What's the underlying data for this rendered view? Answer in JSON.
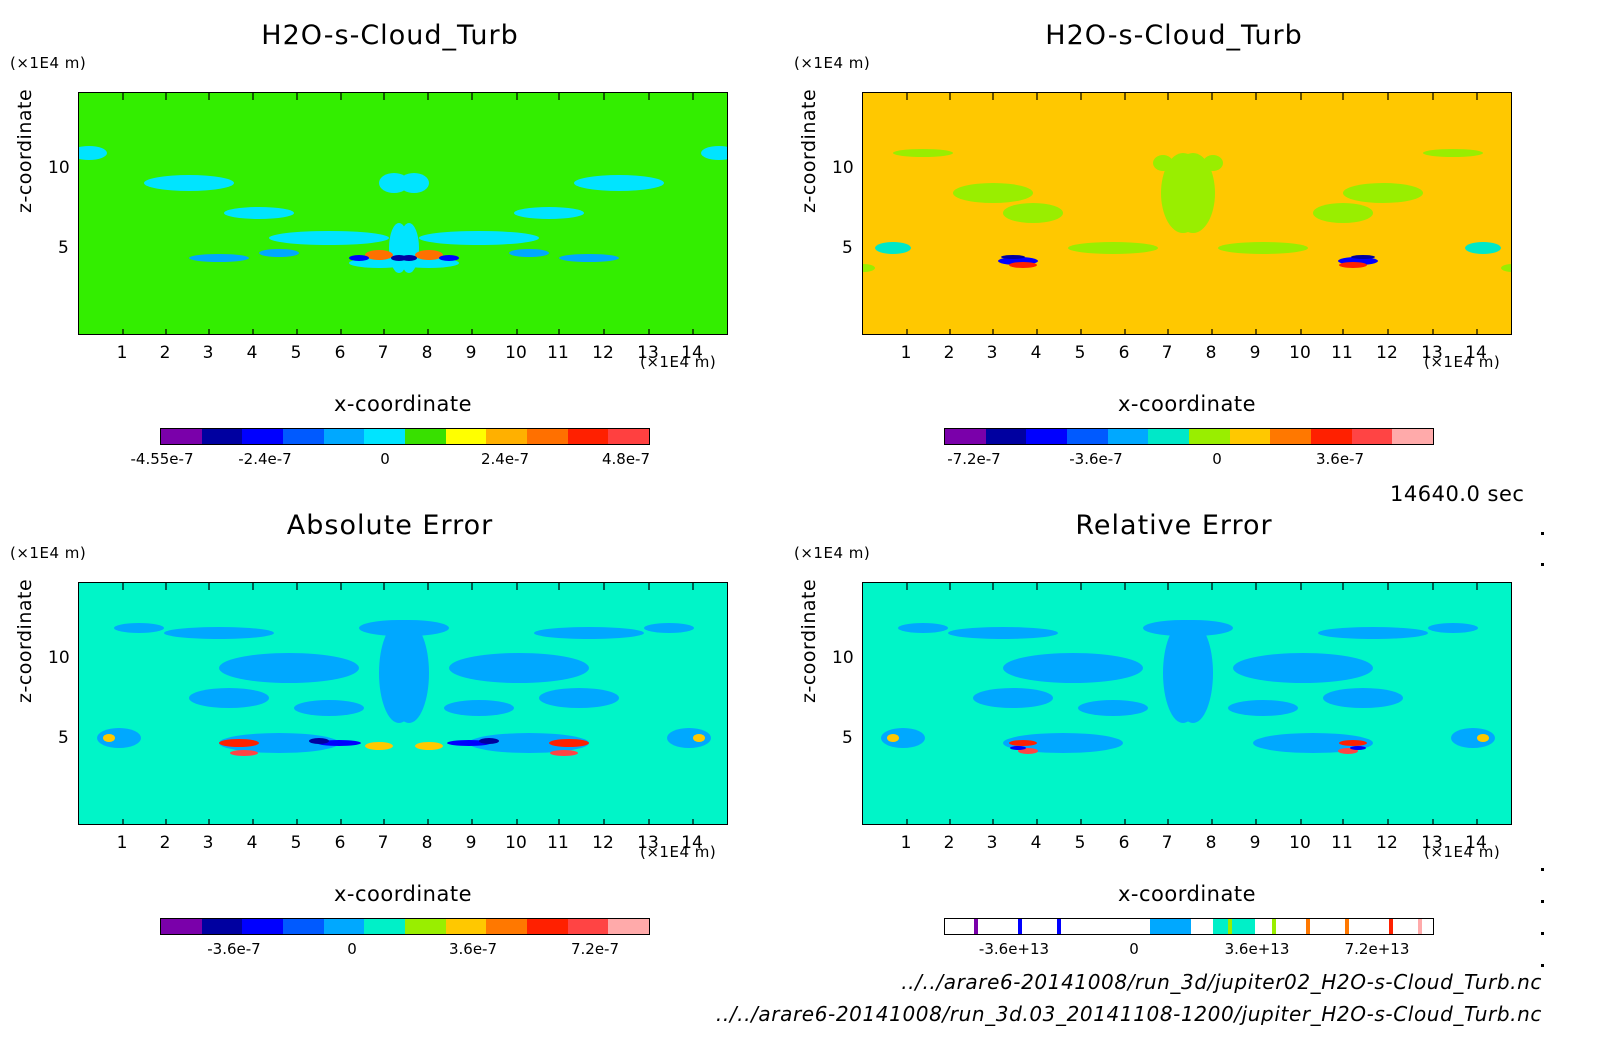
{
  "timestamp": "14640.0 sec",
  "files": {
    "file1": "../../arare6-20141008/run_3d/jupiter02_H2O-s-Cloud_Turb.nc",
    "file2": "../../arare6-20141008/run_3d.03_20141108-1200/jupiter_H2O-s-Cloud_Turb.nc"
  },
  "panels": [
    {
      "title": "H2O-s-Cloud_Turb",
      "xunit": "(×1E4 m)",
      "yunit": "(×1E4 m)",
      "xlabel": "x-coordinate",
      "ylabel": "z-coordinate",
      "xticks": [
        "1",
        "2",
        "3",
        "4",
        "5",
        "6",
        "7",
        "8",
        "9",
        "10",
        "11",
        "12",
        "13",
        "14"
      ],
      "yticks": [
        "5",
        "10"
      ],
      "cbar_ticks": [
        "-4.55e-7",
        "-2.4e-7",
        "0",
        "2.4e-7",
        "4.8e-7"
      ]
    },
    {
      "title": "H2O-s-Cloud_Turb",
      "xunit": "(×1E4 m)",
      "yunit": "(×1E4 m)",
      "xlabel": "x-coordinate",
      "ylabel": "z-coordinate",
      "xticks": [
        "1",
        "2",
        "3",
        "4",
        "5",
        "6",
        "7",
        "8",
        "9",
        "10",
        "11",
        "12",
        "13",
        "14"
      ],
      "yticks": [
        "5",
        "10"
      ],
      "cbar_ticks": [
        "-7.2e-7",
        "-3.6e-7",
        "0",
        "3.6e-7"
      ]
    },
    {
      "title": "Absolute Error",
      "xunit": "(×1E4 m)",
      "yunit": "(×1E4 m)",
      "xlabel": "x-coordinate",
      "ylabel": "z-coordinate",
      "xticks": [
        "1",
        "2",
        "3",
        "4",
        "5",
        "6",
        "7",
        "8",
        "9",
        "10",
        "11",
        "12",
        "13",
        "14"
      ],
      "yticks": [
        "5",
        "10"
      ],
      "cbar_ticks": [
        "-3.6e-7",
        "0",
        "3.6e-7",
        "7.2e-7"
      ]
    },
    {
      "title": "Relative Error",
      "xunit": "(×1E4 m)",
      "yunit": "(×1E4 m)",
      "xlabel": "x-coordinate",
      "ylabel": "z-coordinate",
      "xticks": [
        "1",
        "2",
        "3",
        "4",
        "5",
        "6",
        "7",
        "8",
        "9",
        "10",
        "11",
        "12",
        "13",
        "14"
      ],
      "yticks": [
        "5",
        "10"
      ],
      "cbar_ticks": [
        "-3.6e+13",
        "0",
        "3.6e+13",
        "7.2e+13"
      ]
    }
  ],
  "chart_data": [
    {
      "type": "heatmap",
      "title": "H2O-s-Cloud_Turb",
      "xlabel": "x-coordinate",
      "ylabel": "z-coordinate",
      "xlim": [
        0,
        15
      ],
      "ylim": [
        0,
        15
      ],
      "x_unit": "×1E4 m",
      "y_unit": "×1E4 m",
      "background_color": "#33ee00",
      "colorbar": {
        "colors": [
          "#7a00aa",
          "#0000a0",
          "#0000ff",
          "#005aff",
          "#00a8ff",
          "#00e4ff",
          "#38e000",
          "#ffff00",
          "#ffb000",
          "#ff7000",
          "#ff2000",
          "#ff4040"
        ],
        "tick_labels": [
          "-4.55e-7",
          "-2.4e-7",
          "0",
          "2.4e-7",
          "4.8e-7"
        ],
        "tick_values": [
          -4.55e-07,
          -2.4e-07,
          0,
          2.4e-07,
          4.8e-07
        ]
      }
    },
    {
      "type": "heatmap",
      "title": "H2O-s-Cloud_Turb",
      "xlabel": "x-coordinate",
      "ylabel": "z-coordinate",
      "xlim": [
        0,
        15
      ],
      "ylim": [
        0,
        15
      ],
      "x_unit": "×1E4 m",
      "y_unit": "×1E4 m",
      "background_color": "#ffc800",
      "colorbar": {
        "colors": [
          "#7a00aa",
          "#0000a0",
          "#0000ff",
          "#005aff",
          "#00a8ff",
          "#00e8c8",
          "#99ee00",
          "#ffc800",
          "#ff7800",
          "#ff2000",
          "#ff4444",
          "#ffaaaa"
        ],
        "tick_labels": [
          "-7.2e-7",
          "-3.6e-7",
          "0",
          "3.6e-7"
        ],
        "tick_values": [
          -7.2e-07,
          -3.6e-07,
          0,
          3.6e-07
        ]
      }
    },
    {
      "type": "heatmap",
      "title": "Absolute Error",
      "xlabel": "x-coordinate",
      "ylabel": "z-coordinate",
      "xlim": [
        0,
        15
      ],
      "ylim": [
        0,
        15
      ],
      "x_unit": "×1E4 m",
      "y_unit": "×1E4 m",
      "background_color": "#00f5c8",
      "colorbar": {
        "colors": [
          "#7a00aa",
          "#0000a0",
          "#0000ff",
          "#005aff",
          "#00a8ff",
          "#00f0c8",
          "#99ee00",
          "#ffc800",
          "#ff7800",
          "#ff2000",
          "#ff4444",
          "#ffaaaa"
        ],
        "tick_labels": [
          "-3.6e-7",
          "0",
          "3.6e-7",
          "7.2e-7"
        ],
        "tick_values": [
          -3.6e-07,
          0,
          3.6e-07,
          7.2e-07
        ]
      }
    },
    {
      "type": "heatmap",
      "title": "Relative Error",
      "xlabel": "x-coordinate",
      "ylabel": "z-coordinate",
      "xlim": [
        0,
        15
      ],
      "ylim": [
        0,
        15
      ],
      "x_unit": "×1E4 m",
      "y_unit": "×1E4 m",
      "background_color": "#00f5c8",
      "colorbar": {
        "colors": [
          "#7a00aa",
          "#0000a0",
          "#0000ff",
          "#005aff",
          "#00a8ff",
          "#00f0c8",
          "#99ee00",
          "#ffc800",
          "#ff7800",
          "#ff2000",
          "#ff4444",
          "#ffaaaa"
        ],
        "tick_labels": [
          "-3.6e+13",
          "0",
          "3.6e+13",
          "7.2e+13"
        ],
        "tick_values": [
          -36000000000000.0,
          0,
          36000000000000.0,
          72000000000000.0
        ]
      }
    }
  ]
}
